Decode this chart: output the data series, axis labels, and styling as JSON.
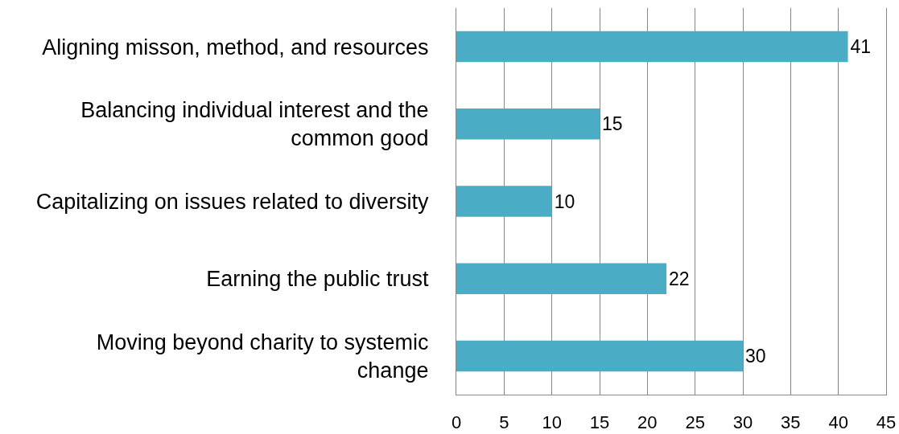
{
  "chart_data": {
    "type": "bar",
    "orientation": "horizontal",
    "categories": [
      "Aligning misson, method, and resources",
      "Balancing individual interest and the\ncommon good",
      "Capitalizing on issues related to diversity",
      "Earning the public trust",
      "Moving beyond charity to systemic\nchange"
    ],
    "values": [
      41,
      15,
      10,
      22,
      30
    ],
    "color": "#4bacc6",
    "xlim": [
      0,
      45
    ],
    "xticks": [
      0,
      5,
      10,
      15,
      20,
      25,
      30,
      35,
      40,
      45
    ],
    "grid": "x",
    "data_labels": true
  }
}
